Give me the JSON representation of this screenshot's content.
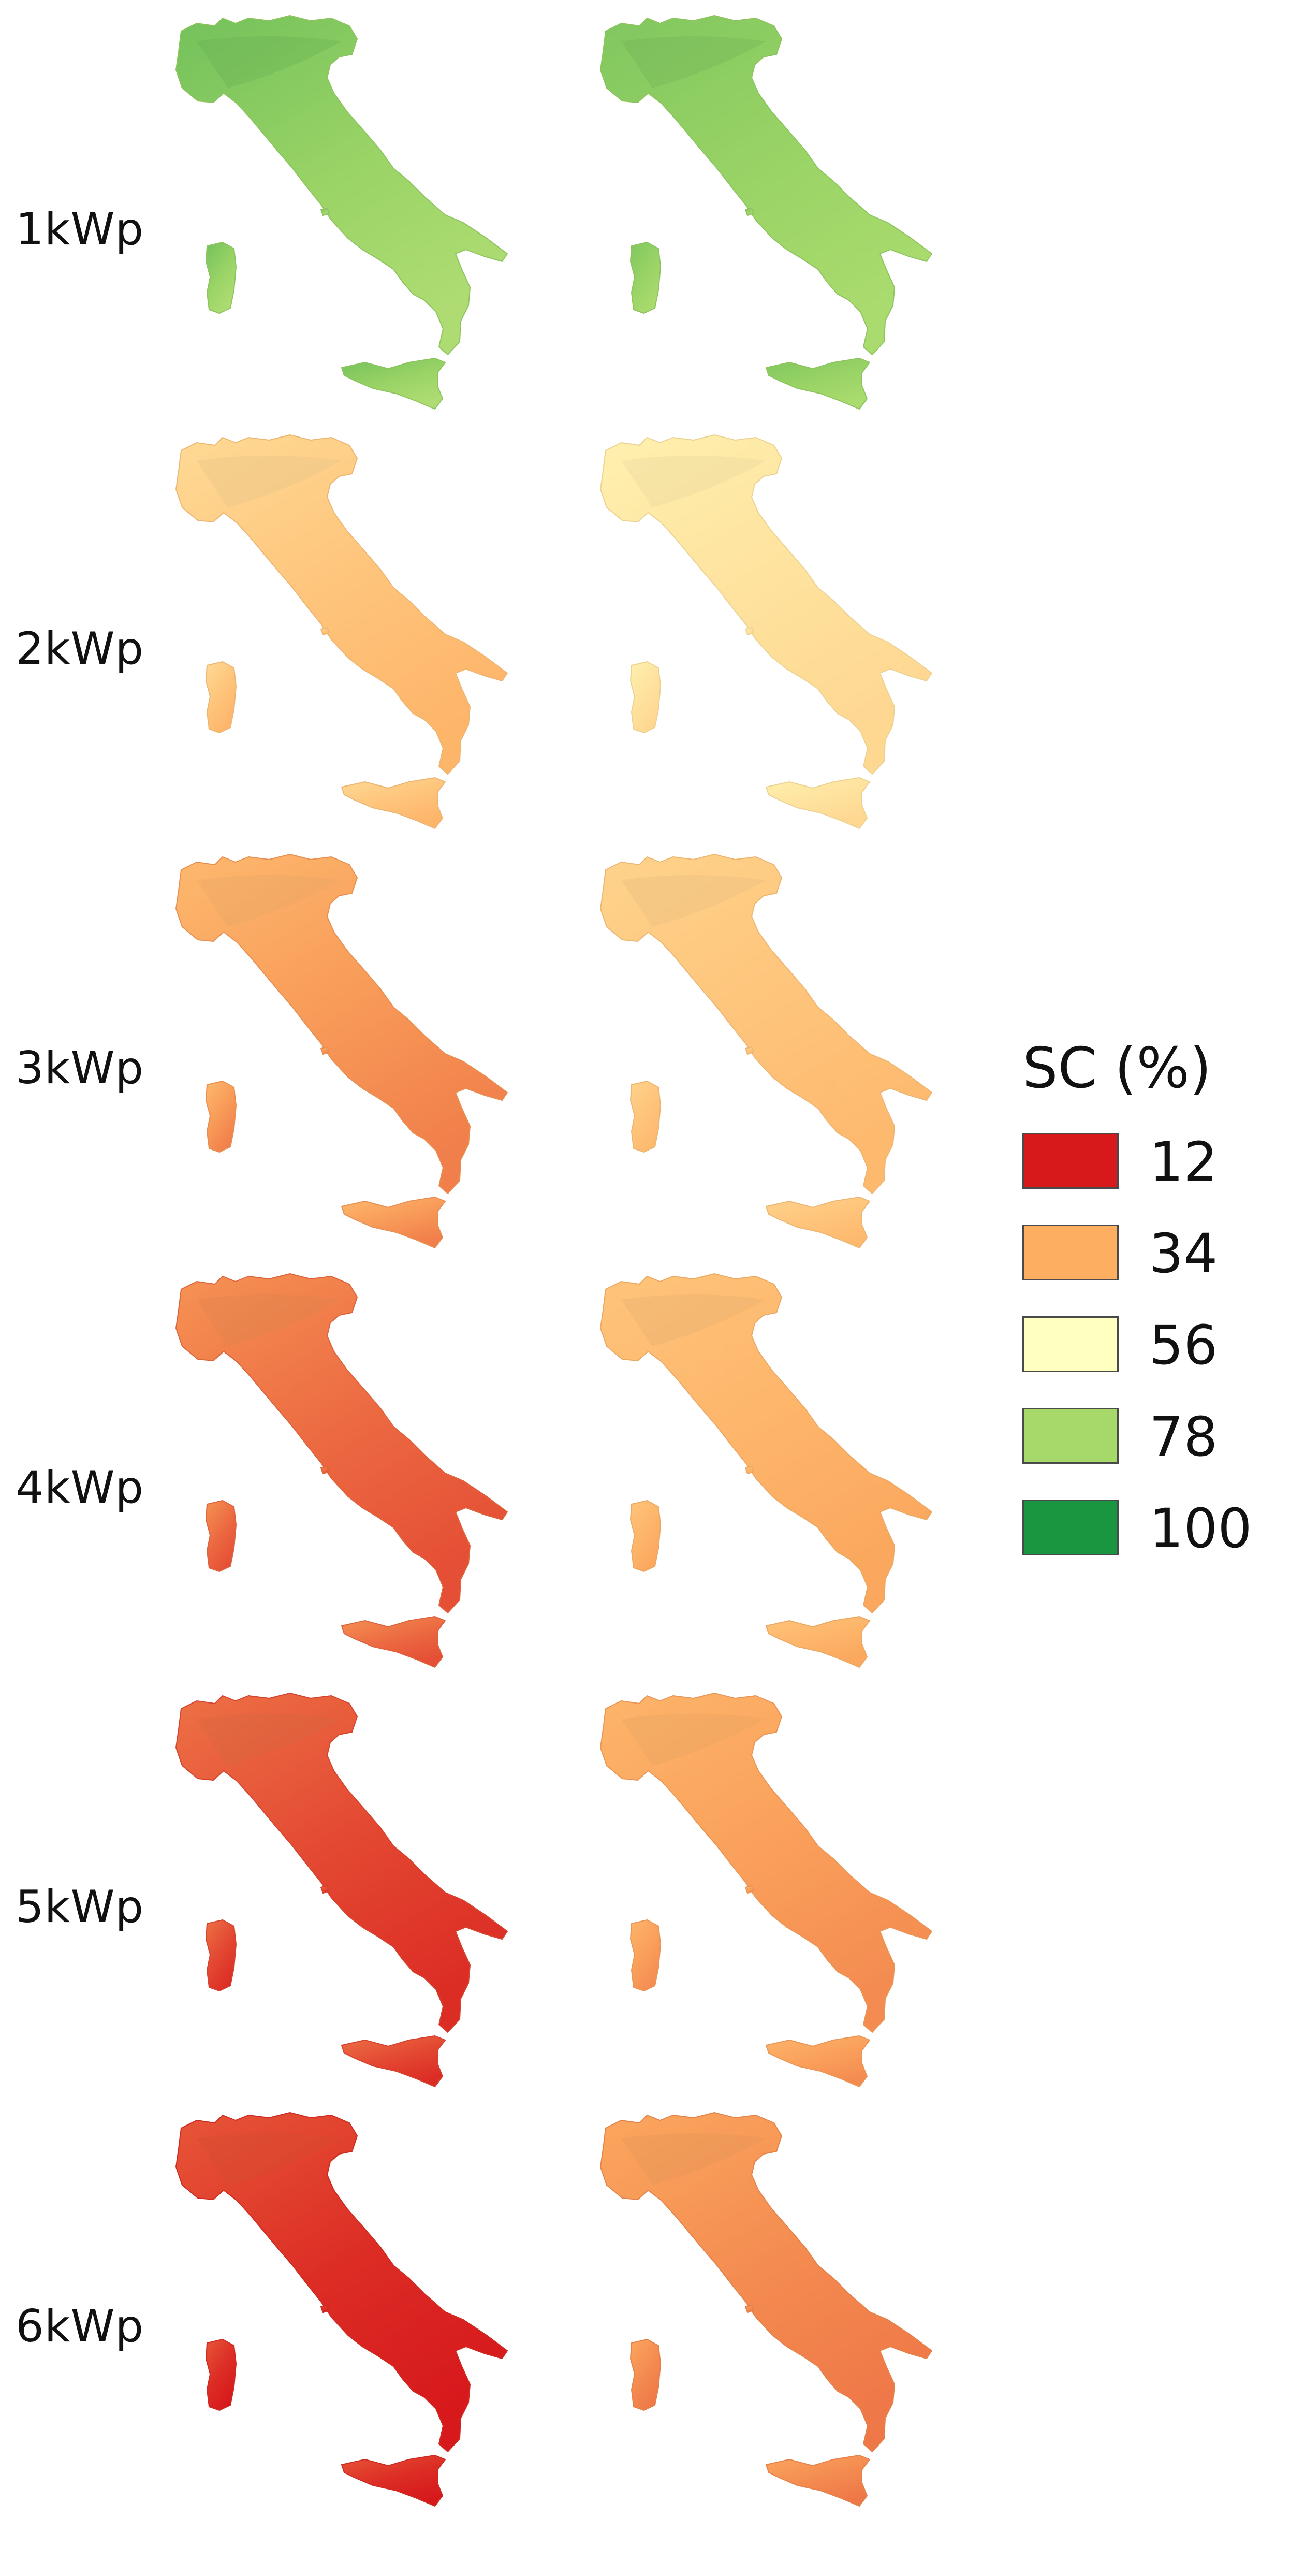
{
  "rows": [
    {
      "label": "1kWp",
      "left_value": 80,
      "right_value": 80
    },
    {
      "label": "2kWp",
      "left_value": 40,
      "right_value": 48
    },
    {
      "label": "3kWp",
      "left_value": 31,
      "right_value": 40
    },
    {
      "label": "4kWp",
      "left_value": 24,
      "right_value": 36
    },
    {
      "label": "5kWp",
      "left_value": 19,
      "right_value": 32
    },
    {
      "label": "6kWp",
      "left_value": 15,
      "right_value": 29
    }
  ],
  "legend": {
    "title": "SC (%)",
    "items": [
      {
        "value": "12",
        "color": "#d7191c"
      },
      {
        "value": "34",
        "color": "#fdae61"
      },
      {
        "value": "56",
        "color": "#ffffc0"
      },
      {
        "value": "78",
        "color": "#a6d96a"
      },
      {
        "value": "100",
        "color": "#1a9641"
      }
    ]
  }
}
